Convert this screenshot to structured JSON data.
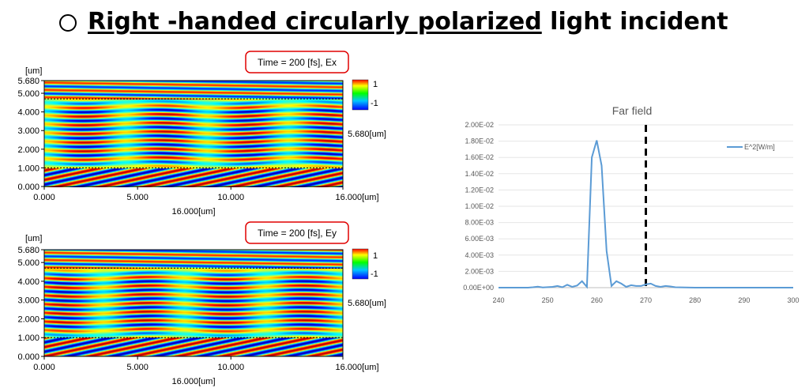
{
  "title": {
    "marker": "○",
    "part1": "Right -handed circularly polarized",
    "part2": " light incident"
  },
  "colors": {
    "far_line": "#5b9bd5",
    "annotation_border": "#e00000",
    "dashed_marker": "#000000",
    "field_rgb": "rainbow"
  },
  "chart_data": [
    {
      "type": "heatmap",
      "title": "Time = 200 [fs], Ex",
      "yunit": "[um]",
      "xlabel": "16.000[um]",
      "xlim": [
        0,
        16
      ],
      "ylim": [
        0,
        5.68
      ],
      "xticks": [
        "0.000",
        "5.000",
        "10.000",
        "16.000[um]"
      ],
      "yticks": [
        "0.000",
        "1.000",
        "2.000",
        "3.000",
        "4.000",
        "5.000",
        "5.680"
      ],
      "dashed_y": [
        1.0,
        4.7
      ],
      "colorbar": {
        "max_label": "1",
        "min_label": "-1"
      },
      "side_label": "5.680[um]"
    },
    {
      "type": "heatmap",
      "title": "Time = 200 [fs], Ey",
      "yunit": "[um]",
      "xlabel": "16.000[um]",
      "xlim": [
        0,
        16
      ],
      "ylim": [
        0,
        5.68
      ],
      "xticks": [
        "0.000",
        "5.000",
        "10.000",
        "16.000[um]"
      ],
      "yticks": [
        "0.000",
        "1.000",
        "2.000",
        "3.000",
        "4.000",
        "5.000",
        "5.680"
      ],
      "dashed_y": [
        1.0,
        4.7
      ],
      "colorbar": {
        "max_label": "1",
        "min_label": "-1"
      },
      "side_label": "5.680[um]"
    },
    {
      "type": "line",
      "title": "Far field",
      "xlim": [
        240,
        300
      ],
      "ylim": [
        0,
        0.02
      ],
      "xticks": [
        "240",
        "250",
        "260",
        "270",
        "280",
        "290",
        "300"
      ],
      "yticks": [
        "0.00E+00",
        "2.00E-03",
        "4.00E-03",
        "6.00E-03",
        "8.00E-03",
        "1.00E-02",
        "1.20E-02",
        "1.40E-02",
        "1.60E-02",
        "1.80E-02",
        "2.00E-02"
      ],
      "marker_x": 270,
      "legend": "top-right",
      "series": [
        {
          "name": "E^2[W/m]",
          "x": [
            240,
            246,
            247,
            248,
            249,
            250,
            251,
            252,
            253,
            254,
            255,
            256,
            257,
            258,
            259,
            260,
            261,
            262,
            263,
            264,
            265,
            266,
            267,
            268,
            269,
            270,
            271,
            272,
            273,
            274,
            275,
            276,
            278,
            280,
            285,
            290,
            300
          ],
          "y": [
            0,
            0,
            5e-05,
            0.00012,
            3e-05,
            6e-05,
            0.0001,
            0.0002,
            5e-05,
            0.00035,
            0.0001,
            0.00025,
            0.0008,
            0.0001,
            0.016,
            0.0181,
            0.015,
            0.0045,
            0.0002,
            0.0008,
            0.0005,
            0.0001,
            0.0003,
            0.0002,
            0.0002,
            0.0004,
            0.0005,
            0.0002,
            0.0001,
            0.0002,
            0.00015,
            5e-05,
            3e-05,
            0,
            0,
            0,
            0
          ]
        }
      ]
    }
  ]
}
